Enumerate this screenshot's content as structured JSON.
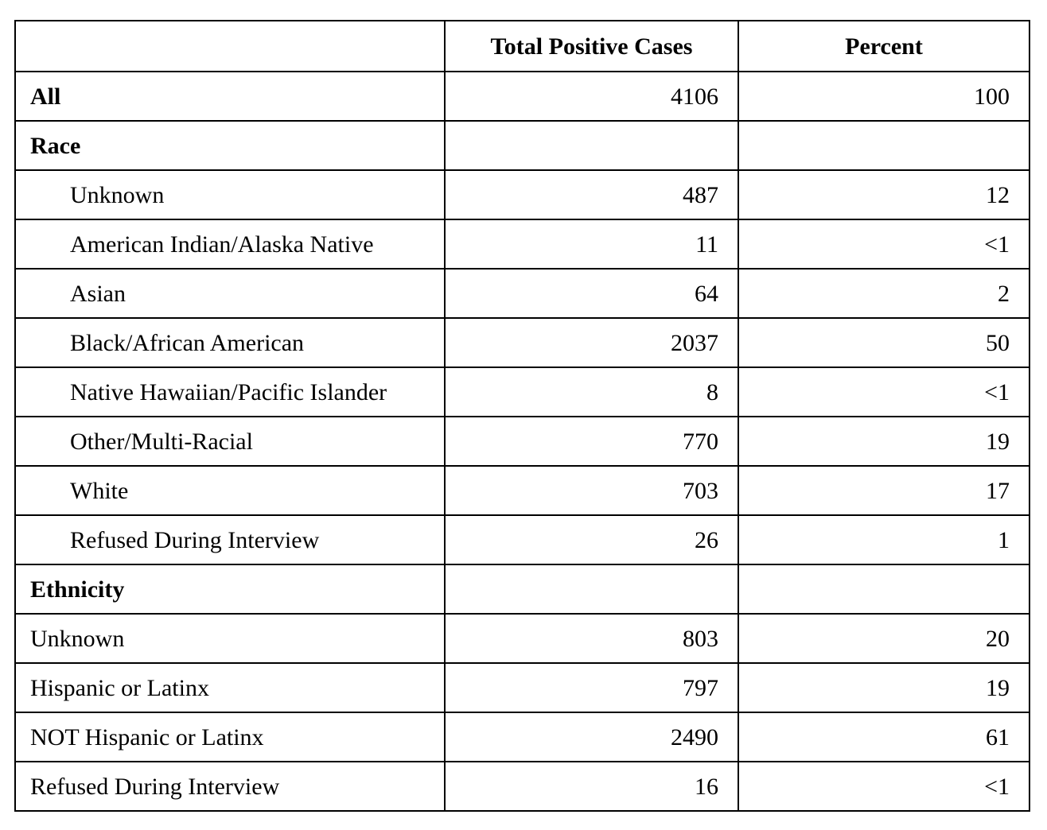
{
  "page": {
    "background_color": "#ffffff",
    "border_color": "#000000",
    "text_color": "#000000"
  },
  "table": {
    "columns": [
      {
        "label": ""
      },
      {
        "label": "Total Positive Cases"
      },
      {
        "label": "Percent"
      }
    ],
    "rows": [
      {
        "label": "All",
        "cases": "4106",
        "percent": "100",
        "bold": true,
        "indent": false
      },
      {
        "label": "Race",
        "cases": "",
        "percent": "",
        "bold": true,
        "indent": false
      },
      {
        "label": "Unknown",
        "cases": "487",
        "percent": "12",
        "bold": false,
        "indent": true
      },
      {
        "label": "American Indian/Alaska Native",
        "cases": "11",
        "percent": "<1",
        "bold": false,
        "indent": true
      },
      {
        "label": "Asian",
        "cases": "64",
        "percent": "2",
        "bold": false,
        "indent": true
      },
      {
        "label": "Black/African American",
        "cases": "2037",
        "percent": "50",
        "bold": false,
        "indent": true
      },
      {
        "label": "Native Hawaiian/Pacific Islander",
        "cases": "8",
        "percent": "<1",
        "bold": false,
        "indent": true
      },
      {
        "label": "Other/Multi-Racial",
        "cases": "770",
        "percent": "19",
        "bold": false,
        "indent": true
      },
      {
        "label": "White",
        "cases": "703",
        "percent": "17",
        "bold": false,
        "indent": true
      },
      {
        "label": "Refused During Interview",
        "cases": "26",
        "percent": "1",
        "bold": false,
        "indent": true
      },
      {
        "label": "Ethnicity",
        "cases": "",
        "percent": "",
        "bold": true,
        "indent": false
      },
      {
        "label": "Unknown",
        "cases": "803",
        "percent": "20",
        "bold": false,
        "indent": false
      },
      {
        "label": "Hispanic or Latinx",
        "cases": "797",
        "percent": "19",
        "bold": false,
        "indent": false
      },
      {
        "label": "NOT Hispanic or Latinx",
        "cases": "2490",
        "percent": "61",
        "bold": false,
        "indent": false
      },
      {
        "label": "Refused During Interview",
        "cases": "16",
        "percent": "<1",
        "bold": false,
        "indent": false
      }
    ]
  }
}
